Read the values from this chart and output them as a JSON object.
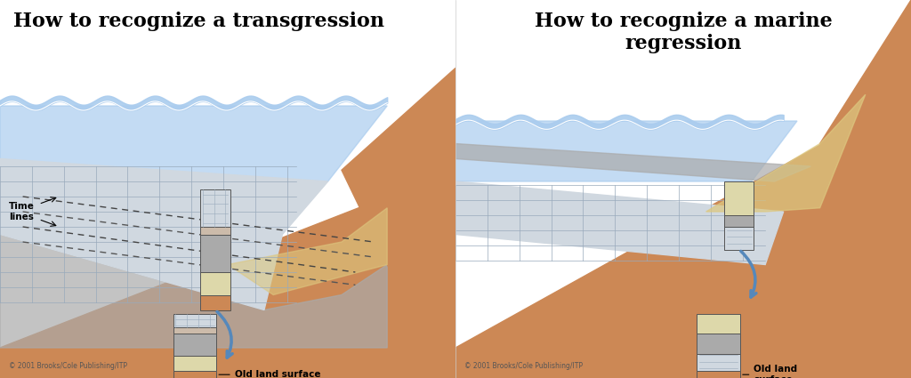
{
  "title_left": "How to recognize a transgression",
  "title_right": "How to recognize a marine\nregression",
  "copyright": "© 2001 Brooks/Cole Publishing/ITP",
  "colors": {
    "sand": "#CC8855",
    "sand_light": "#DDAA77",
    "water": "#AACCEE",
    "water_dark": "#88AABB",
    "limestone": "#D0D8E0",
    "limestone_border": "#99AABB",
    "shale": "#AAAAAA",
    "shale_dark": "#888888",
    "background": "#FFFFFF",
    "arrow_blue": "#5588BB"
  },
  "time_lines_label": "Time\nlines",
  "old_land_surface_label": "Old land surface",
  "old_land_surface_label_right": "Old land\nsurface"
}
